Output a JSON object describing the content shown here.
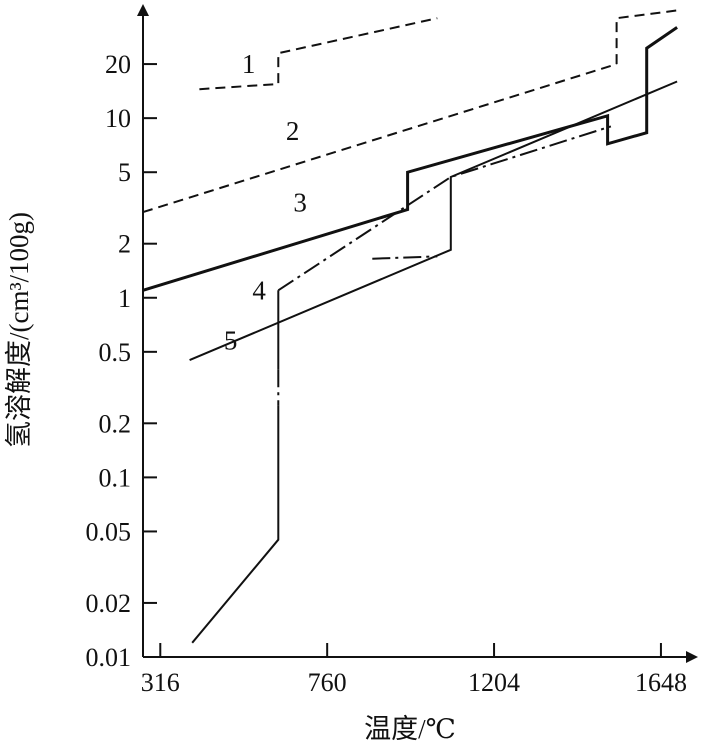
{
  "chart_data": {
    "type": "line",
    "x_label": "温度/℃",
    "y_label": "氢溶解度/(cm³/100g)",
    "y_scale": "log",
    "x_ticks": [
      316,
      760,
      1204,
      1648
    ],
    "x_tick_labels": [
      "316",
      "760",
      "1204",
      "1648"
    ],
    "xlim": [
      270,
      1720
    ],
    "y_ticks": [
      0.01,
      0.02,
      0.05,
      0.1,
      0.2,
      0.5,
      1,
      2,
      5,
      10,
      20
    ],
    "y_tick_labels": [
      "0.01",
      "0.02",
      "0.05",
      "0.1",
      "0.2",
      "0.5",
      "1",
      "2",
      "5",
      "10",
      "20"
    ],
    "ylim": [
      0.01,
      40
    ],
    "grid": false,
    "legend": "none",
    "series": [
      {
        "name": "1",
        "style": "dashed",
        "segments": [
          [
            [
              420,
              14.5
            ],
            [
              630,
              15.5
            ],
            [
              630,
              23
            ],
            [
              1053,
              36
            ]
          ],
          [
            [
              1530,
              20
            ],
            [
              1530,
              36
            ],
            [
              1700,
              40
            ]
          ]
        ]
      },
      {
        "name": "2",
        "style": "dashed",
        "segments": [
          [
            [
              270,
              3
            ],
            [
              1530,
              20
            ]
          ]
        ]
      },
      {
        "name": "3",
        "style": "solid-thick",
        "segments": [
          [
            [
              270,
              1.1
            ],
            [
              974,
              3.1
            ],
            [
              974,
              5
            ],
            [
              1506,
              10.3
            ],
            [
              1506,
              7.2
            ],
            [
              1610,
              8.3
            ],
            [
              1610,
              24.5
            ],
            [
              1691,
              32
            ]
          ]
        ]
      },
      {
        "name": "4",
        "style": "dash-dot",
        "segments": [
          [
            [
              630,
              1.1
            ],
            [
              1089,
              4.7
            ],
            [
              1515,
              9
            ]
          ],
          [
            [
              630,
              0.4
            ],
            [
              630,
              0.25
            ]
          ]
        ]
      },
      {
        "name": "4",
        "style": "solid",
        "segments": [
          [
            [
              401,
              0.012
            ],
            [
              630,
              0.045
            ],
            [
              630,
              0.25
            ]
          ],
          [
            [
              630,
              0.4
            ],
            [
              630,
              1.1
            ]
          ]
        ]
      },
      {
        "name": "5",
        "style": "solid",
        "segments": [
          [
            [
              394,
              0.45
            ],
            [
              1089,
              1.85
            ],
            [
              1089,
              4.7
            ],
            [
              1691,
              16
            ]
          ]
        ]
      },
      {
        "name": "5",
        "style": "dash-dot",
        "segments": [
          [
            [
              880,
              1.65
            ],
            [
              1053,
              1.7
            ]
          ]
        ]
      }
    ],
    "labels": [
      {
        "text": "1",
        "x": 551,
        "y": 20
      },
      {
        "text": "2",
        "x": 668,
        "y": 8.5
      },
      {
        "text": "3",
        "x": 688,
        "y": 3.4
      },
      {
        "text": "4",
        "x": 579,
        "y": 1.1
      },
      {
        "text": "5",
        "x": 503,
        "y": 0.58
      }
    ]
  }
}
